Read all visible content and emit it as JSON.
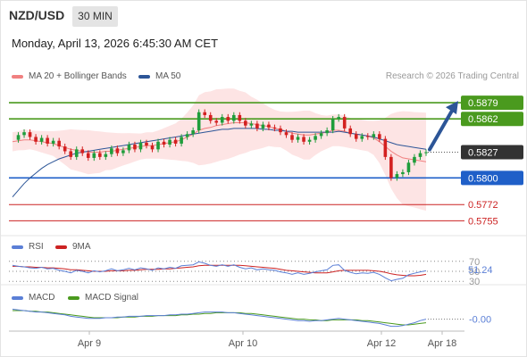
{
  "header": {
    "pair": "NZD/USD",
    "timeframe": "30 MIN",
    "datetime": "Monday, April 13, 2026 6:45:30 AM CET",
    "credit": "Research © 2026 Trading Central"
  },
  "legend": {
    "bollinger": "MA 20 + Bollinger Bands",
    "ma50": "MA 50",
    "rsi": "RSI",
    "rsi_ma": "9MA",
    "macd": "MACD",
    "macd_signal": "MACD Signal"
  },
  "colors": {
    "bollinger": "#f08080",
    "band_fill": "#fde4e4",
    "ma50": "#2c5597",
    "resistance": "#4a9a1e",
    "pivot": "#1f5fc8",
    "support": "#cc2222",
    "arrow": "#2c5597",
    "last_price": "#333333",
    "rsi": "#5b7fd6",
    "macd": "#5b7fd6",
    "macd_signal": "#4a9a1e"
  },
  "chart_data": [
    {
      "type": "candlestick",
      "panel": "price",
      "ylim": [
        0.5745,
        0.5895
      ],
      "x_ticks": [
        "Apr 9",
        "Apr 10",
        "Apr 12",
        "Apr 18"
      ],
      "levels": [
        {
          "value": 0.5879,
          "label": "0.5879",
          "kind": "resistance"
        },
        {
          "value": 0.5862,
          "label": "0.5862",
          "kind": "resistance"
        },
        {
          "value": 0.58,
          "label": "0.5800",
          "kind": "pivot"
        },
        {
          "value": 0.5772,
          "label": "0.5772",
          "kind": "support"
        },
        {
          "value": 0.5755,
          "label": "0.5755",
          "kind": "support"
        }
      ],
      "last_price": {
        "value": 0.5827,
        "label": "0.5827"
      },
      "forecast_arrow": {
        "from": 0.5827,
        "to": 0.5879
      },
      "series": [
        {
          "name": "price",
          "values": [
            0.584,
            0.5845,
            0.5848,
            0.5843,
            0.5838,
            0.5842,
            0.5836,
            0.5839,
            0.5833,
            0.5828,
            0.5822,
            0.583,
            0.5826,
            0.5821,
            0.5826,
            0.5822,
            0.5825,
            0.5831,
            0.5826,
            0.5829,
            0.5835,
            0.583,
            0.5837,
            0.5834,
            0.583,
            0.5838,
            0.5835,
            0.584,
            0.5836,
            0.5843,
            0.5846,
            0.585,
            0.5869,
            0.5866,
            0.586,
            0.5858,
            0.5864,
            0.586,
            0.5866,
            0.586,
            0.5855,
            0.5857,
            0.5852,
            0.5856,
            0.5853,
            0.5852,
            0.5848,
            0.5845,
            0.584,
            0.5843,
            0.5838,
            0.584,
            0.5844,
            0.5847,
            0.585,
            0.5862,
            0.5864,
            0.5852,
            0.5846,
            0.5841,
            0.5844,
            0.5843,
            0.5846,
            0.5841,
            0.5822,
            0.58,
            0.5804,
            0.5806,
            0.5816,
            0.5822,
            0.5826,
            0.5827
          ]
        },
        {
          "name": "MA 20",
          "values": [
            0.5838,
            0.5839,
            0.584,
            0.584,
            0.5839,
            0.5838,
            0.5837,
            0.5836,
            0.5834,
            0.5832,
            0.583,
            0.5829,
            0.5828,
            0.5827,
            0.5827,
            0.5827,
            0.5828,
            0.5828,
            0.5829,
            0.583,
            0.5831,
            0.5832,
            0.5833,
            0.5834,
            0.5834,
            0.5835,
            0.5836,
            0.5837,
            0.5838,
            0.584,
            0.5843,
            0.5846,
            0.585,
            0.5852,
            0.5853,
            0.5855,
            0.5856,
            0.5857,
            0.5858,
            0.5858,
            0.5858,
            0.5857,
            0.5856,
            0.5855,
            0.5854,
            0.5852,
            0.5851,
            0.5849,
            0.5847,
            0.5846,
            0.5845,
            0.5845,
            0.5846,
            0.5847,
            0.5848,
            0.585,
            0.585,
            0.5849,
            0.5847,
            0.5846,
            0.5845,
            0.5844,
            0.5842,
            0.5838,
            0.5833,
            0.5828,
            0.5824,
            0.5821,
            0.582,
            0.5819,
            0.5818,
            0.5817
          ]
        },
        {
          "name": "MA 50",
          "values": [
            0.578,
            0.5787,
            0.5794,
            0.58,
            0.5805,
            0.581,
            0.5814,
            0.5817,
            0.582,
            0.5822,
            0.5824,
            0.5826,
            0.5827,
            0.5828,
            0.5829,
            0.583,
            0.5831,
            0.5832,
            0.5833,
            0.5834,
            0.5835,
            0.5836,
            0.5837,
            0.5838,
            0.5839,
            0.584,
            0.5841,
            0.5842,
            0.5843,
            0.5844,
            0.5845,
            0.5846,
            0.5847,
            0.5848,
            0.5849,
            0.585,
            0.5851,
            0.5851,
            0.5852,
            0.5852,
            0.5852,
            0.5852,
            0.5852,
            0.5851,
            0.5851,
            0.585,
            0.585,
            0.5849,
            0.5849,
            0.5848,
            0.5848,
            0.5848,
            0.5848,
            0.5848,
            0.5848,
            0.5848,
            0.5849,
            0.5848,
            0.5847,
            0.5846,
            0.5845,
            0.5844,
            0.5843,
            0.5841,
            0.5839,
            0.5837,
            0.5835,
            0.5834,
            0.5833,
            0.5832,
            0.5831,
            0.583
          ]
        }
      ]
    },
    {
      "type": "line",
      "panel": "RSI",
      "ylim": [
        25,
        75
      ],
      "y_ticks": [
        70,
        50,
        30
      ],
      "last_value_label": "51.24",
      "series": [
        {
          "name": "RSI",
          "values": [
            62,
            60,
            59,
            57,
            56,
            58,
            55,
            56,
            52,
            50,
            47,
            52,
            50,
            47,
            51,
            49,
            51,
            55,
            51,
            53,
            56,
            53,
            57,
            55,
            52,
            57,
            55,
            58,
            56,
            61,
            62,
            63,
            69,
            66,
            62,
            60,
            63,
            60,
            63,
            58,
            55,
            57,
            53,
            55,
            53,
            52,
            49,
            47,
            44,
            47,
            44,
            46,
            49,
            51,
            53,
            62,
            63,
            52,
            48,
            45,
            47,
            46,
            48,
            44,
            37,
            31,
            34,
            36,
            43,
            46,
            49,
            51
          ]
        },
        {
          "name": "9MA",
          "values": [
            60,
            60,
            59,
            59,
            58,
            58,
            57,
            57,
            56,
            55,
            53,
            53,
            52,
            51,
            50,
            50,
            50,
            51,
            51,
            51,
            52,
            52,
            53,
            54,
            54,
            54,
            55,
            55,
            56,
            57,
            58,
            59,
            61,
            62,
            62,
            62,
            62,
            62,
            62,
            62,
            61,
            60,
            59,
            58,
            57,
            56,
            54,
            52,
            51,
            50,
            49,
            48,
            47,
            47,
            47,
            49,
            51,
            52,
            52,
            52,
            52,
            52,
            51,
            50,
            48,
            45,
            43,
            42,
            41,
            41,
            42,
            44
          ]
        }
      ]
    },
    {
      "type": "line",
      "panel": "MACD",
      "ylim": [
        -0.0015,
        0.0015
      ],
      "last_value_label": "-0.00",
      "series": [
        {
          "name": "MACD",
          "values": [
            0.0012,
            0.0011,
            0.001,
            0.0009,
            0.0008,
            0.0008,
            0.0007,
            0.0006,
            0.0005,
            0.0004,
            0.0002,
            0.0001,
            0.0,
            -0.0001,
            -0.0001,
            -0.0001,
            0.0,
            0.0,
            0.0001,
            0.0001,
            0.0002,
            0.0002,
            0.0002,
            0.0003,
            0.0003,
            0.0003,
            0.0003,
            0.0004,
            0.0004,
            0.0005,
            0.0005,
            0.0006,
            0.0007,
            0.0008,
            0.0008,
            0.0008,
            0.0008,
            0.0007,
            0.0007,
            0.0006,
            0.0005,
            0.0004,
            0.0003,
            0.0002,
            0.0001,
            0.0,
            -0.0001,
            -0.0002,
            -0.0003,
            -0.0004,
            -0.0004,
            -0.0005,
            -0.0004,
            -0.0004,
            -0.0003,
            -0.0002,
            -0.0001,
            -0.0002,
            -0.0003,
            -0.0004,
            -0.0005,
            -0.0006,
            -0.0007,
            -0.0008,
            -0.001,
            -0.0012,
            -0.0012,
            -0.0011,
            -0.0009,
            -0.0007,
            -0.0004,
            -0.0002
          ]
        },
        {
          "name": "MACD Signal",
          "values": [
            0.001,
            0.001,
            0.001,
            0.0009,
            0.0009,
            0.0008,
            0.0008,
            0.0007,
            0.0006,
            0.0005,
            0.0004,
            0.0003,
            0.0002,
            0.0001,
            0.0,
            0.0,
            0.0,
            0.0,
            0.0,
            0.0001,
            0.0001,
            0.0001,
            0.0002,
            0.0002,
            0.0002,
            0.0003,
            0.0003,
            0.0003,
            0.0003,
            0.0004,
            0.0004,
            0.0005,
            0.0005,
            0.0006,
            0.0006,
            0.0007,
            0.0007,
            0.0007,
            0.0007,
            0.0007,
            0.0006,
            0.0006,
            0.0005,
            0.0004,
            0.0003,
            0.0002,
            0.0001,
            0.0,
            -0.0001,
            -0.0002,
            -0.0002,
            -0.0003,
            -0.0003,
            -0.0004,
            -0.0004,
            -0.0003,
            -0.0003,
            -0.0003,
            -0.0003,
            -0.0003,
            -0.0004,
            -0.0004,
            -0.0005,
            -0.0006,
            -0.0007,
            -0.0008,
            -0.0009,
            -0.001,
            -0.001,
            -0.0009,
            -0.0008,
            -0.0007
          ]
        }
      ]
    }
  ]
}
